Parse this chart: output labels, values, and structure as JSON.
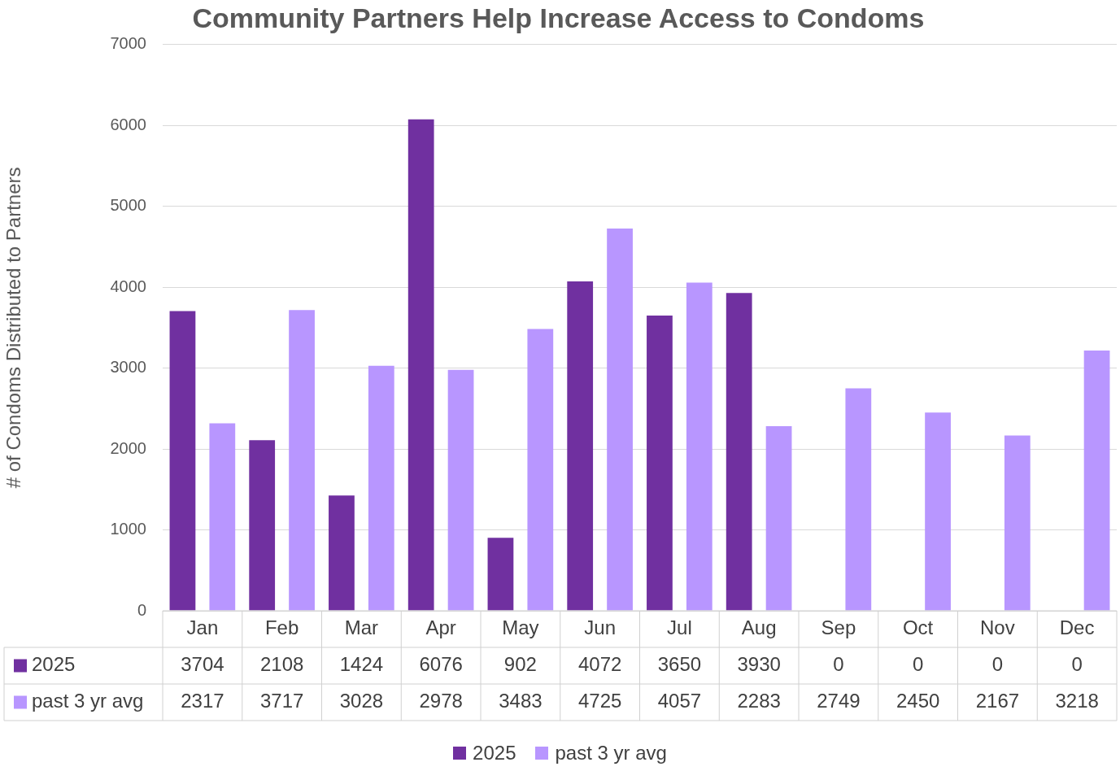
{
  "chart_data": {
    "type": "bar",
    "title": "Community Partners Help Increase Access to Condoms",
    "ylabel": "# of Condoms Distributed to Partners",
    "categories": [
      "Jan",
      "Feb",
      "Mar",
      "Apr",
      "May",
      "Jun",
      "Jul",
      "Aug",
      "Sep",
      "Oct",
      "Nov",
      "Dec"
    ],
    "series": [
      {
        "name": "2025",
        "color": "#7030a0",
        "values": [
          3704,
          2108,
          1424,
          6076,
          902,
          4072,
          3650,
          3930,
          0,
          0,
          0,
          0
        ]
      },
      {
        "name": "past 3 yr avg",
        "color": "#b896ff",
        "values": [
          2317,
          3717,
          3028,
          2978,
          3483,
          4725,
          4057,
          2283,
          2749,
          2450,
          2167,
          3218
        ]
      }
    ],
    "ylim": [
      0,
      7000
    ],
    "yticks": [
      0,
      1000,
      2000,
      3000,
      4000,
      5000,
      6000,
      7000
    ],
    "grid": "y",
    "legend": "bottom",
    "data_labels": true
  }
}
